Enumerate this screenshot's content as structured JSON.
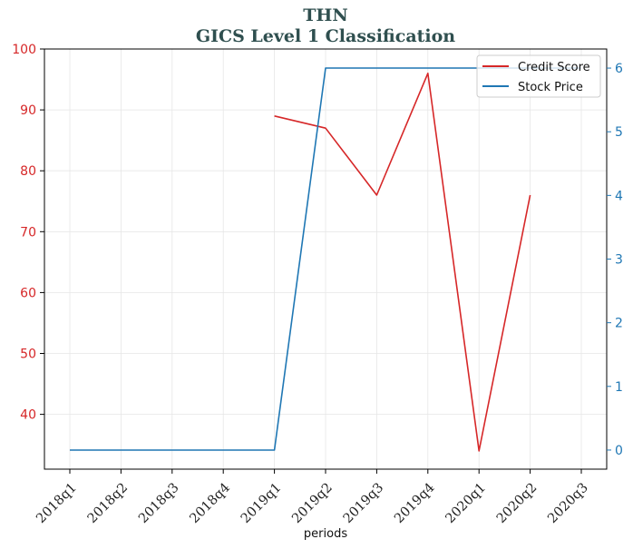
{
  "chart_data": {
    "type": "line",
    "title": "THN",
    "subtitle": "GICS Level 1 Classification",
    "xlabel": "periods",
    "categories": [
      "2018q1",
      "2018q2",
      "2018q3",
      "2018q4",
      "2019q1",
      "2019q2",
      "2019q3",
      "2019q4",
      "2020q1",
      "2020q2",
      "2020q3"
    ],
    "left_axis": {
      "ylim": [
        31,
        100
      ],
      "ticks": [
        40,
        50,
        60,
        70,
        80,
        90,
        100
      ],
      "color": "#d62728"
    },
    "right_axis": {
      "ylim": [
        -0.3,
        6.3
      ],
      "ticks": [
        0,
        1,
        2,
        3,
        4,
        5,
        6
      ],
      "tick_labels": [
        "0",
        "1",
        "2",
        "3",
        "4",
        "5",
        "6"
      ],
      "color": "#1f77b4"
    },
    "series": [
      {
        "name": "Credit Score",
        "axis": "left",
        "color": "#d62728",
        "values": [
          null,
          null,
          null,
          null,
          89,
          87,
          76,
          96,
          34,
          76,
          null
        ]
      },
      {
        "name": "Stock Price",
        "axis": "right",
        "color": "#1f77b4",
        "values": [
          0,
          0,
          0,
          0,
          0,
          6,
          6,
          6,
          6,
          6,
          6
        ]
      }
    ],
    "grid": true,
    "legend_position": "top-right"
  }
}
